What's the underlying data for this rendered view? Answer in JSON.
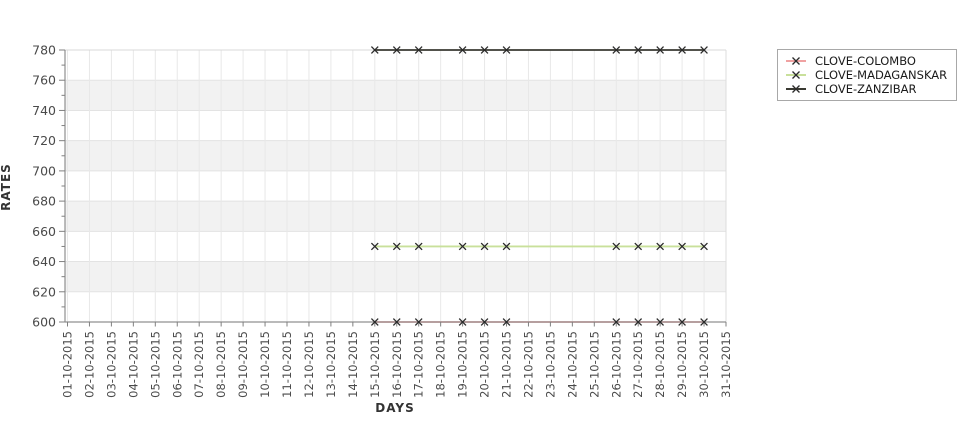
{
  "chart_data": {
    "type": "line",
    "title": "",
    "xlabel": "DAYS",
    "ylabel": "RATES",
    "x_categories": [
      "01-10-2015",
      "02-10-2015",
      "03-10-2015",
      "04-10-2015",
      "05-10-2015",
      "06-10-2015",
      "07-10-2015",
      "08-10-2015",
      "09-10-2015",
      "10-10-2015",
      "11-10-2015",
      "12-10-2015",
      "13-10-2015",
      "14-10-2015",
      "15-10-2015",
      "16-10-2015",
      "17-10-2015",
      "18-10-2015",
      "19-10-2015",
      "20-10-2015",
      "21-10-2015",
      "22-10-2015",
      "23-10-2015",
      "24-10-2015",
      "25-10-2015",
      "26-10-2015",
      "27-10-2015",
      "28-10-2015",
      "29-10-2015",
      "30-10-2015",
      "31-10-2015"
    ],
    "y_ticks": [
      600,
      620,
      640,
      660,
      680,
      700,
      720,
      740,
      760,
      780
    ],
    "ylim": [
      600,
      780
    ],
    "grid": true,
    "band_fill": true,
    "legend_position": "outside-upper-right",
    "series": [
      {
        "name": "CLOVE-COLOMBO",
        "color": "#f0a2a2",
        "marker": "x",
        "dates": [
          "15-10-2015",
          "16-10-2015",
          "17-10-2015",
          "19-10-2015",
          "20-10-2015",
          "21-10-2015",
          "26-10-2015",
          "27-10-2015",
          "28-10-2015",
          "29-10-2015",
          "30-10-2015"
        ],
        "values": [
          600,
          600,
          600,
          600,
          600,
          600,
          600,
          600,
          600,
          600,
          600
        ]
      },
      {
        "name": "CLOVE-MADAGANSKAR",
        "color": "#c9e09b",
        "marker": "x",
        "dates": [
          "15-10-2015",
          "16-10-2015",
          "17-10-2015",
          "19-10-2015",
          "20-10-2015",
          "21-10-2015",
          "26-10-2015",
          "27-10-2015",
          "28-10-2015",
          "29-10-2015",
          "30-10-2015"
        ],
        "values": [
          650,
          650,
          650,
          650,
          650,
          650,
          650,
          650,
          650,
          650,
          650
        ]
      },
      {
        "name": "CLOVE-ZANZIBAR",
        "color": "#3a3a32",
        "marker": "x",
        "dates": [
          "15-10-2015",
          "16-10-2015",
          "17-10-2015",
          "19-10-2015",
          "20-10-2015",
          "21-10-2015",
          "26-10-2015",
          "27-10-2015",
          "28-10-2015",
          "29-10-2015",
          "30-10-2015"
        ],
        "values": [
          780,
          780,
          780,
          780,
          780,
          780,
          780,
          780,
          780,
          780,
          780
        ]
      }
    ]
  },
  "colors": {
    "background": "#ffffff",
    "band": "#f2f2f2",
    "vgrid": "#e8e8e8",
    "hgrid": "#e3e3e3",
    "spine_dark": "#909090",
    "spine_top": "#d8d8d8",
    "spine_right": "#dcdcdc",
    "tick": "#808080",
    "tick_label": "#4a4a4a",
    "marker": "#2b2b2b"
  }
}
